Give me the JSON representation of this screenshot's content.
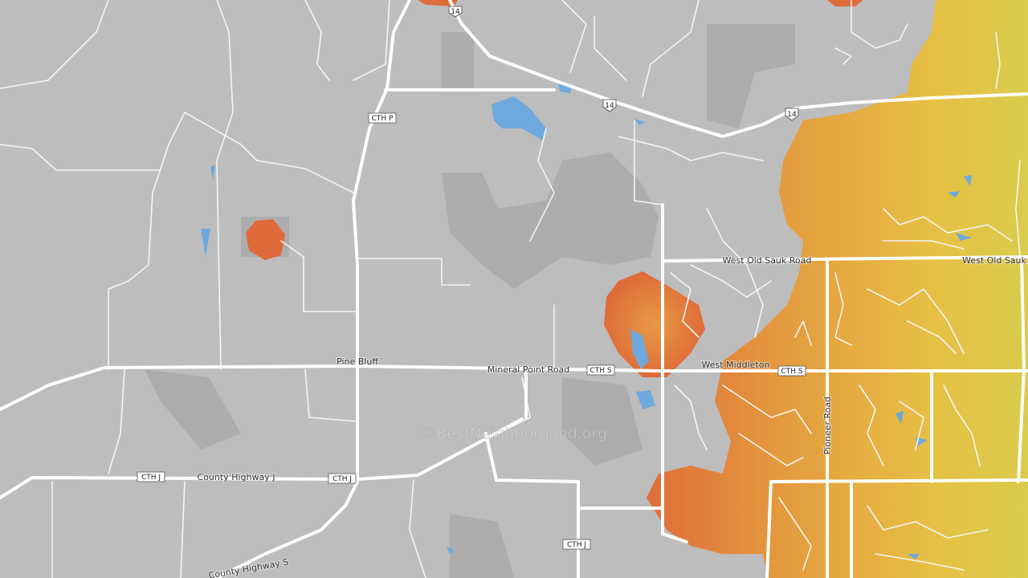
{
  "labels": {
    "west_old_sauk_road_1": "West Old Sauk Road",
    "west_old_sauk_road_2": "West Old Sauk",
    "pine_bluff": "Pine Bluff",
    "mineral_point_road": "Mineral Point Road",
    "west_middleton": "West Middleton",
    "pioneer_road": "Pioneer Road",
    "county_highway_j": "County Highway J",
    "county_highway_s": "County Highway S"
  },
  "shields": {
    "cth_p": "CTH P",
    "us14_a": "14",
    "us14_b": "14",
    "us14_c": "14",
    "cth_s_1": "CTH S",
    "cth_s_2": "CTH S",
    "cth_j_1": "CTH J",
    "cth_j_2": "CTH J",
    "cth_j_3": "CTH J"
  },
  "watermark": "©BestNeighborhood.org"
}
